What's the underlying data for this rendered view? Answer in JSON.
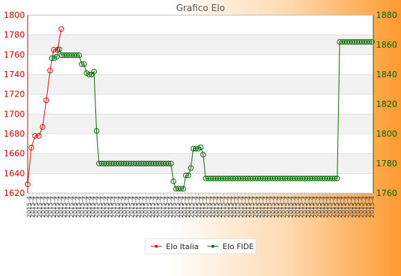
{
  "chart_data": {
    "type": "line",
    "title": "Grafico Elo",
    "grid": true,
    "legend_position": "bottom",
    "y_left": {
      "range": [
        1620,
        1800
      ],
      "ticks": [
        1620,
        1640,
        1660,
        1680,
        1700,
        1720,
        1740,
        1760,
        1780,
        1800
      ],
      "color": "#cc0000"
    },
    "y_right": {
      "range": [
        1760,
        1880
      ],
      "ticks": [
        1760,
        1780,
        1800,
        1820,
        1840,
        1860,
        1880
      ],
      "color": "#006600"
    },
    "x_tick_label": "2015-4",
    "x_count": 98,
    "series": [
      {
        "name": "Elo Italia",
        "axis": "left",
        "color": "#dd0000",
        "values": [
          1629,
          1666,
          1678,
          1678,
          1687,
          1714,
          1744,
          1765,
          1765,
          1786
        ]
      },
      {
        "name": "Elo FIDE",
        "axis": "right",
        "color": "#006600",
        "values": [
          1851,
          1851,
          1852,
          1857,
          1853,
          1853,
          1853,
          1853,
          1853,
          1853,
          1853,
          1853,
          1847,
          1847,
          1841,
          1840,
          1840,
          1842,
          1802,
          1780,
          1780,
          1780,
          1780,
          1780,
          1780,
          1780,
          1780,
          1780,
          1780,
          1780,
          1780,
          1780,
          1780,
          1780,
          1780,
          1780,
          1780,
          1780,
          1780,
          1780,
          1780,
          1780,
          1780,
          1780,
          1780,
          1780,
          1780,
          1780,
          1780,
          1768,
          1763,
          1763,
          1763,
          1763,
          1772,
          1772,
          1777,
          1790,
          1790,
          1790,
          1791,
          1786,
          1770,
          1770,
          1770,
          1770,
          1770,
          1770,
          1770,
          1770,
          1770,
          1770,
          1770,
          1770,
          1770,
          1770,
          1770,
          1770,
          1770,
          1770,
          1770,
          1770,
          1770,
          1770,
          1770,
          1770,
          1770,
          1770,
          1770,
          1770,
          1770,
          1770,
          1770,
          1770,
          1770,
          1770,
          1770,
          1770,
          1770,
          1770,
          1770,
          1770,
          1770,
          1770,
          1770,
          1770,
          1770,
          1770,
          1770,
          1770,
          1770,
          1770,
          1770,
          1770,
          1770,
          1770,
          1862,
          1862,
          1862,
          1862,
          1862,
          1862,
          1862,
          1862,
          1862,
          1862,
          1862,
          1862,
          1862,
          1862
        ]
      }
    ]
  }
}
